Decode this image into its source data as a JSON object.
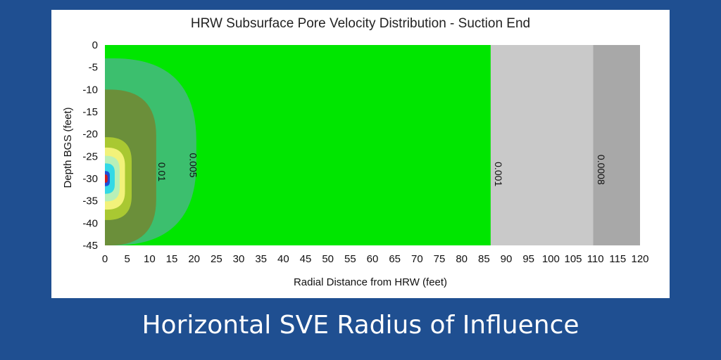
{
  "caption": "Horizontal SVE Radius of Influence",
  "chart_data": {
    "type": "heatmap",
    "title": "HRW Subsurface Pore Velocity Distribution - Suction End",
    "xlabel": "Radial Distance from HRW (feet)",
    "ylabel": "Depth BGS (feet)",
    "xlim": [
      0,
      120
    ],
    "ylim": [
      -45,
      0
    ],
    "x_ticks": [
      0,
      5,
      10,
      15,
      20,
      25,
      30,
      35,
      40,
      45,
      50,
      55,
      60,
      65,
      70,
      75,
      80,
      85,
      90,
      95,
      100,
      105,
      110,
      115,
      120
    ],
    "y_ticks": [
      0,
      -5,
      -10,
      -15,
      -20,
      -25,
      -30,
      -35,
      -40,
      -45
    ],
    "well_depth": -30,
    "bands": [
      {
        "label": "",
        "color": "#a8a8a8",
        "x_max": 120
      },
      {
        "label": "0.0008",
        "color": "#c9c9c9",
        "x_max": 109.5
      },
      {
        "label": "0.001",
        "color": "#00e600",
        "x_max": 86.5
      },
      {
        "label": "0.005",
        "color": "#3cbf6e",
        "x_max": 20.5
      },
      {
        "label": "0.01",
        "color": "#6b8f3a",
        "x_max": 11.5
      },
      {
        "label": "",
        "color": "#a9c832",
        "x_max": 6
      },
      {
        "label": "",
        "color": "#f2f27a",
        "x_max": 4.5
      },
      {
        "label": "",
        "color": "#b8f0b8",
        "x_max": 3.3
      },
      {
        "label": "",
        "color": "#33d9e6",
        "x_max": 2.2
      },
      {
        "label": "",
        "color": "#1e4fd6",
        "x_max": 1.1
      },
      {
        "label": "",
        "color": "#d41a1a",
        "x_max": 0.6
      }
    ],
    "contour_labels": [
      {
        "text": "0.0008",
        "x": 110.5,
        "y": -28
      },
      {
        "text": "0.001",
        "x": 87.5,
        "y": -29
      },
      {
        "text": "0.005",
        "x": 19,
        "y": -27
      },
      {
        "text": "0.01",
        "x": 12,
        "y": -28.5
      }
    ]
  }
}
